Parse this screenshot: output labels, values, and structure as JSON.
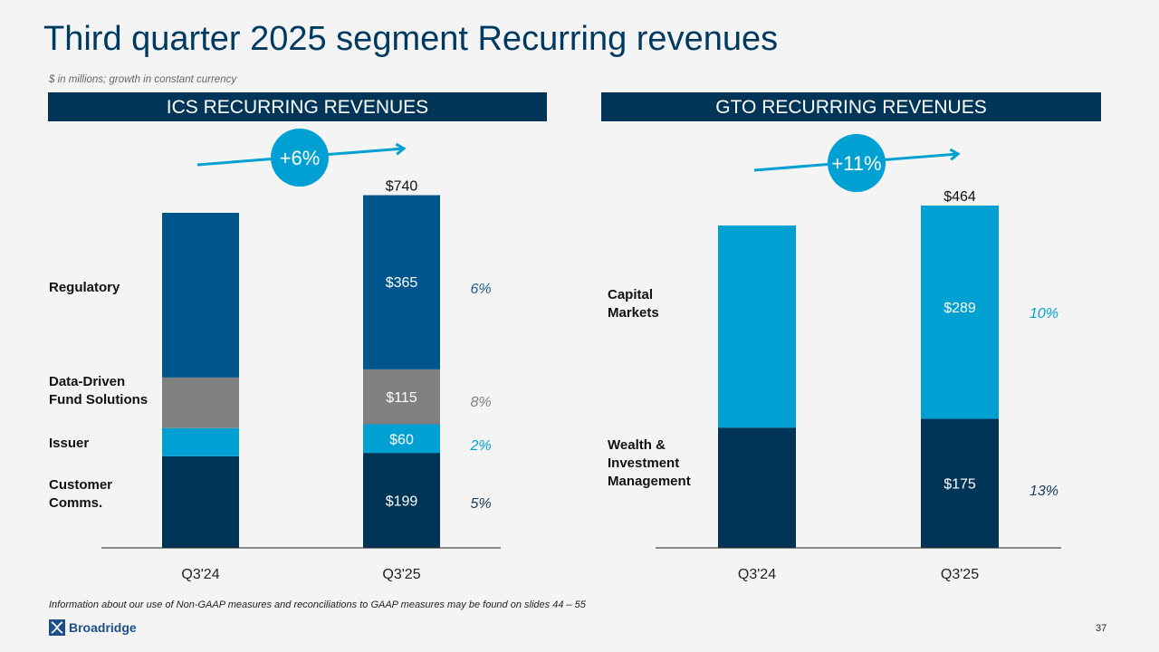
{
  "title": "Third quarter 2025 segment Recurring revenues",
  "subtitle": "$ in millions; growth in constant currency",
  "footnote": "Information about our use of Non-GAAP measures and reconciliations to GAAP measures may be found on slides 44 – 55",
  "logo": "Broadridge",
  "page_number": "37",
  "colors": {
    "navy": "#003558",
    "mid_blue": "#00558c",
    "light_blue": "#00a0d2",
    "gray": "#808080",
    "bg": "#f4f4f4"
  },
  "chart_data": [
    {
      "type": "bar",
      "stacked": true,
      "title": "ICS RECURRING REVENUES",
      "categories": [
        "Q3'24",
        "Q3'25"
      ],
      "growth_badge": "+6%",
      "totals": [
        702,
        740
      ],
      "total_labels": [
        "",
        "$740"
      ],
      "series": [
        {
          "name": "Customer Comms.",
          "label_lines": [
            "Customer",
            "Comms."
          ],
          "color": "#003558",
          "values": [
            192,
            199
          ],
          "value_labels": [
            "",
            "$199"
          ],
          "growth": "5%",
          "growth_color": "#1a3b5c"
        },
        {
          "name": "Issuer",
          "label_lines": [
            "Issuer"
          ],
          "color": "#00a0d2",
          "values": [
            59,
            60
          ],
          "value_labels": [
            "",
            "$60"
          ],
          "growth": "2%",
          "growth_color": "#00a0d2"
        },
        {
          "name": "Data-Driven Fund Solutions",
          "label_lines": [
            "Data-Driven",
            "Fund Solutions"
          ],
          "color": "#808080",
          "values": [
            106,
            115
          ],
          "value_labels": [
            "",
            "$115"
          ],
          "growth": "8%",
          "growth_color": "#808080"
        },
        {
          "name": "Regulatory",
          "label_lines": [
            "Regulatory"
          ],
          "color": "#00558c",
          "values": [
            345,
            365
          ],
          "value_labels": [
            "",
            "$365"
          ],
          "growth": "6%",
          "growth_color": "#1f5f8f"
        }
      ],
      "ylim": [
        0,
        740
      ],
      "xlabel": "",
      "ylabel": "",
      "grid": false
    },
    {
      "type": "bar",
      "stacked": true,
      "title": "GTO RECURRING REVENUES",
      "categories": [
        "Q3'24",
        "Q3'25"
      ],
      "growth_badge": "+11%",
      "totals": [
        437,
        464
      ],
      "total_labels": [
        "",
        "$464"
      ],
      "series": [
        {
          "name": "Wealth & Investment Management",
          "label_lines": [
            "Wealth &",
            "Investment",
            "Management"
          ],
          "color": "#003558",
          "values": [
            163,
            175
          ],
          "value_labels": [
            "",
            "$175"
          ],
          "growth": "13%",
          "growth_color": "#1a3b5c"
        },
        {
          "name": "Capital Markets",
          "label_lines": [
            "Capital",
            "Markets"
          ],
          "color": "#00a0d2",
          "values": [
            274,
            289
          ],
          "value_labels": [
            "",
            "$289"
          ],
          "growth": "10%",
          "growth_color": "#00a0d2"
        }
      ],
      "ylim": [
        0,
        464
      ],
      "xlabel": "",
      "ylabel": "",
      "grid": false
    }
  ]
}
